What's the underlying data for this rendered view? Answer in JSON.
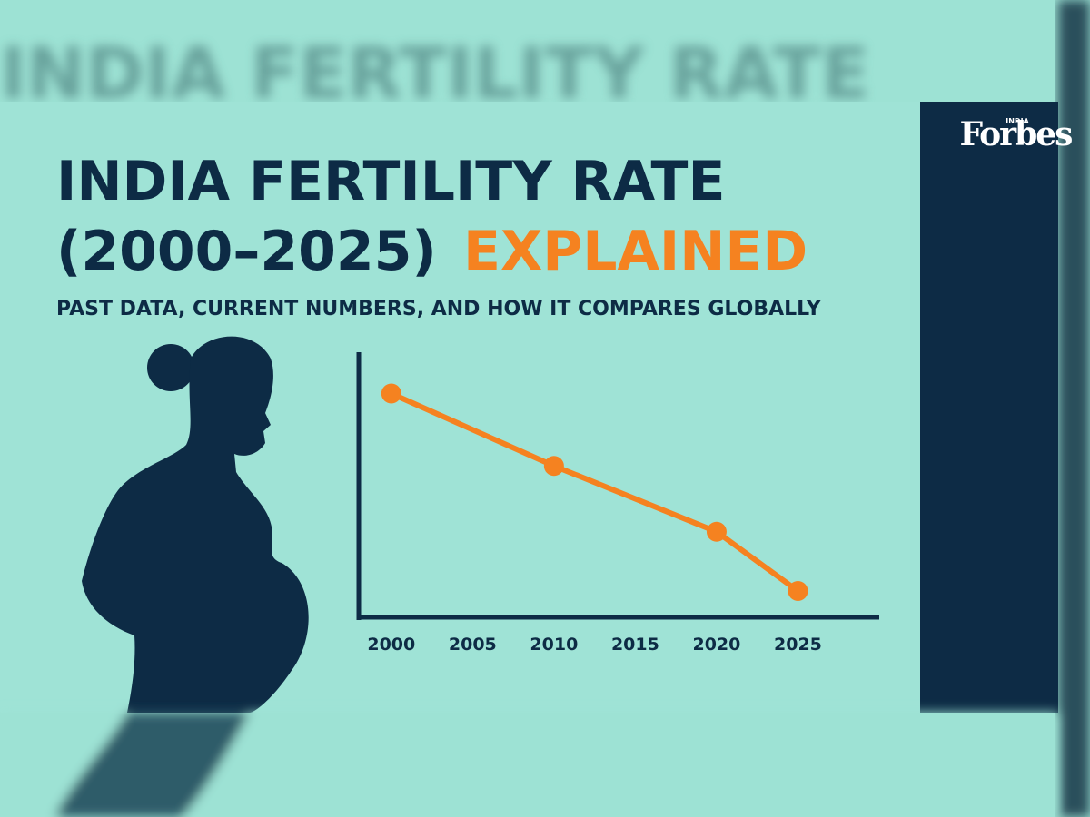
{
  "brand": {
    "name": "Forbes",
    "edition": "INDIA"
  },
  "chart_data": {
    "type": "line",
    "title": {
      "line1": "INDIA FERTILITY RATE",
      "line2": "(2000–2025)",
      "highlight": "EXPLAINED"
    },
    "subtitle": "PAST DATA, CURRENT NUMBERS, AND HOW IT COMPARES GLOBALLY",
    "x": [
      2000,
      2010,
      2020,
      2025
    ],
    "series": [
      {
        "color": "#f58220",
        "values": [
          3.2,
          2.65,
          2.15,
          1.7
        ]
      }
    ],
    "xlim": [
      1998,
      2030
    ],
    "xticks": [
      2000,
      2005,
      2010,
      2015,
      2020,
      2025
    ],
    "ylim": [
      1.5,
      3.5
    ]
  }
}
